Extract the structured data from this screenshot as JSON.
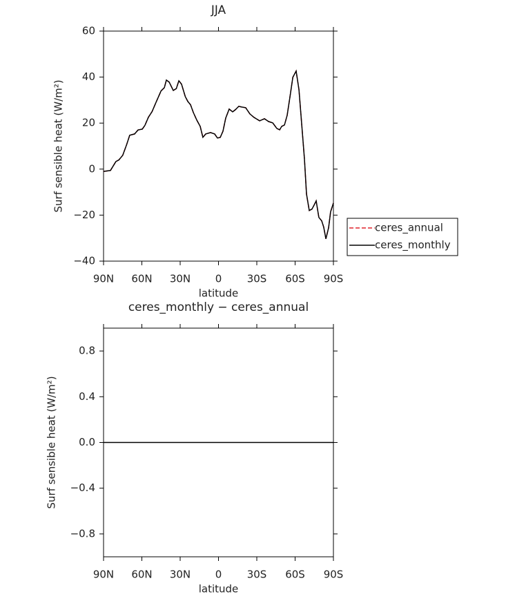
{
  "chart_data": [
    {
      "type": "line",
      "title": "JJA",
      "xlabel": "latitude",
      "ylabel": "Surf sensible heat (W/m²)",
      "x": [
        90,
        84.6,
        80.3,
        78,
        75,
        72,
        69.5,
        65.7,
        63,
        59.7,
        57.6,
        54.9,
        52,
        48.9,
        45,
        42.4,
        40.8,
        38.6,
        35.4,
        33,
        31,
        28.9,
        26,
        24,
        21.9,
        19.7,
        17,
        14.3,
        12.2,
        10,
        6.2,
        3,
        0.8,
        -1.4,
        -3.5,
        -5.7,
        -8.4,
        -11.1,
        -13.2,
        -15.9,
        -18.1,
        -21.3,
        -24.6,
        -27.8,
        -32.2,
        -36,
        -39.2,
        -42.5,
        -45.7,
        -47.9,
        -49.5,
        -51.7,
        -53.8,
        -56,
        -58.2,
        -60.8,
        -63,
        -65.1,
        -67.3,
        -68.9,
        -71.1,
        -73.2,
        -74.9,
        -76.5,
        -78.6,
        -80.8,
        -82.4,
        -84.1,
        -86.2,
        -87.8,
        -90
      ],
      "series": [
        {
          "name": "ceres_annual",
          "color": "#e0202a",
          "dash": true,
          "values": [
            -1,
            -0.6,
            3.3,
            4,
            6,
            10.5,
            14.7,
            15.3,
            17,
            17.4,
            19,
            22.5,
            25,
            29,
            34,
            35.4,
            38.7,
            37.8,
            34.2,
            35,
            38.4,
            36.9,
            31.5,
            29.4,
            28,
            24.6,
            21.3,
            18.6,
            13.8,
            15.3,
            15.9,
            15.3,
            13.5,
            13.8,
            16.5,
            22.2,
            26.1,
            24.9,
            25.8,
            27.3,
            27,
            26.7,
            24,
            22.5,
            21,
            21.9,
            20.7,
            20.1,
            17.7,
            17.1,
            18.6,
            19.2,
            23.4,
            31.5,
            39.9,
            42.6,
            34.5,
            20.1,
            4.5,
            -10.8,
            -18,
            -17.4,
            -15.6,
            -13.8,
            -21,
            -22.5,
            -25.2,
            -30.3,
            -25.5,
            -18.6,
            -14.7
          ]
        },
        {
          "name": "ceres_monthly",
          "color": "#000000",
          "dash": false,
          "values": [
            -1,
            -0.6,
            3.3,
            4,
            6,
            10.5,
            14.7,
            15.3,
            17,
            17.4,
            19,
            22.5,
            25,
            29,
            34,
            35.4,
            38.7,
            37.8,
            34.2,
            35,
            38.4,
            36.9,
            31.5,
            29.4,
            28,
            24.6,
            21.3,
            18.6,
            13.8,
            15.3,
            15.9,
            15.3,
            13.5,
            13.8,
            16.5,
            22.2,
            26.1,
            24.9,
            25.8,
            27.3,
            27,
            26.7,
            24,
            22.5,
            21,
            21.9,
            20.7,
            20.1,
            17.7,
            17.1,
            18.6,
            19.2,
            23.4,
            31.5,
            39.9,
            42.6,
            34.5,
            20.1,
            4.5,
            -10.8,
            -18,
            -17.4,
            -15.6,
            -13.8,
            -21,
            -22.5,
            -25.2,
            -30.3,
            -25.5,
            -18.6,
            -14.7
          ]
        }
      ],
      "xlim": [
        90,
        -90
      ],
      "xticks": [
        {
          "value": 90,
          "label": "90N"
        },
        {
          "value": 60,
          "label": "60N"
        },
        {
          "value": 30,
          "label": "30N"
        },
        0,
        {
          "value": -30,
          "label": "30S"
        },
        {
          "value": -60,
          "label": "60S"
        },
        {
          "value": -90,
          "label": "90S"
        }
      ],
      "ylim": [
        -40,
        60
      ],
      "yticks": [
        {
          "value": -40,
          "label": "−40"
        },
        {
          "value": -20,
          "label": "−20"
        },
        0,
        20,
        40,
        60
      ],
      "legend": "right"
    },
    {
      "type": "line",
      "title": "ceres_monthly − ceres_annual",
      "xlabel": "latitude",
      "ylabel": "Surf sensible heat (W/m²)",
      "x": [
        90,
        -90
      ],
      "series": [
        {
          "color": "#000000",
          "dash": false,
          "values": [
            0,
            0
          ]
        }
      ],
      "xlim": [
        90,
        -90
      ],
      "xticks": [
        {
          "value": 90,
          "label": "90N"
        },
        {
          "value": 60,
          "label": "60N"
        },
        {
          "value": 30,
          "label": "30N"
        },
        0,
        {
          "value": -30,
          "label": "30S"
        },
        {
          "value": -60,
          "label": "60S"
        },
        {
          "value": -90,
          "label": "90S"
        }
      ],
      "ylim": [
        -1,
        1
      ],
      "yticks": [
        {
          "value": -0.8,
          "label": "−0.8"
        },
        {
          "value": -0.4,
          "label": "−0.4"
        },
        {
          "value": 0,
          "label": "0.0"
        },
        0.4,
        0.8
      ]
    }
  ]
}
